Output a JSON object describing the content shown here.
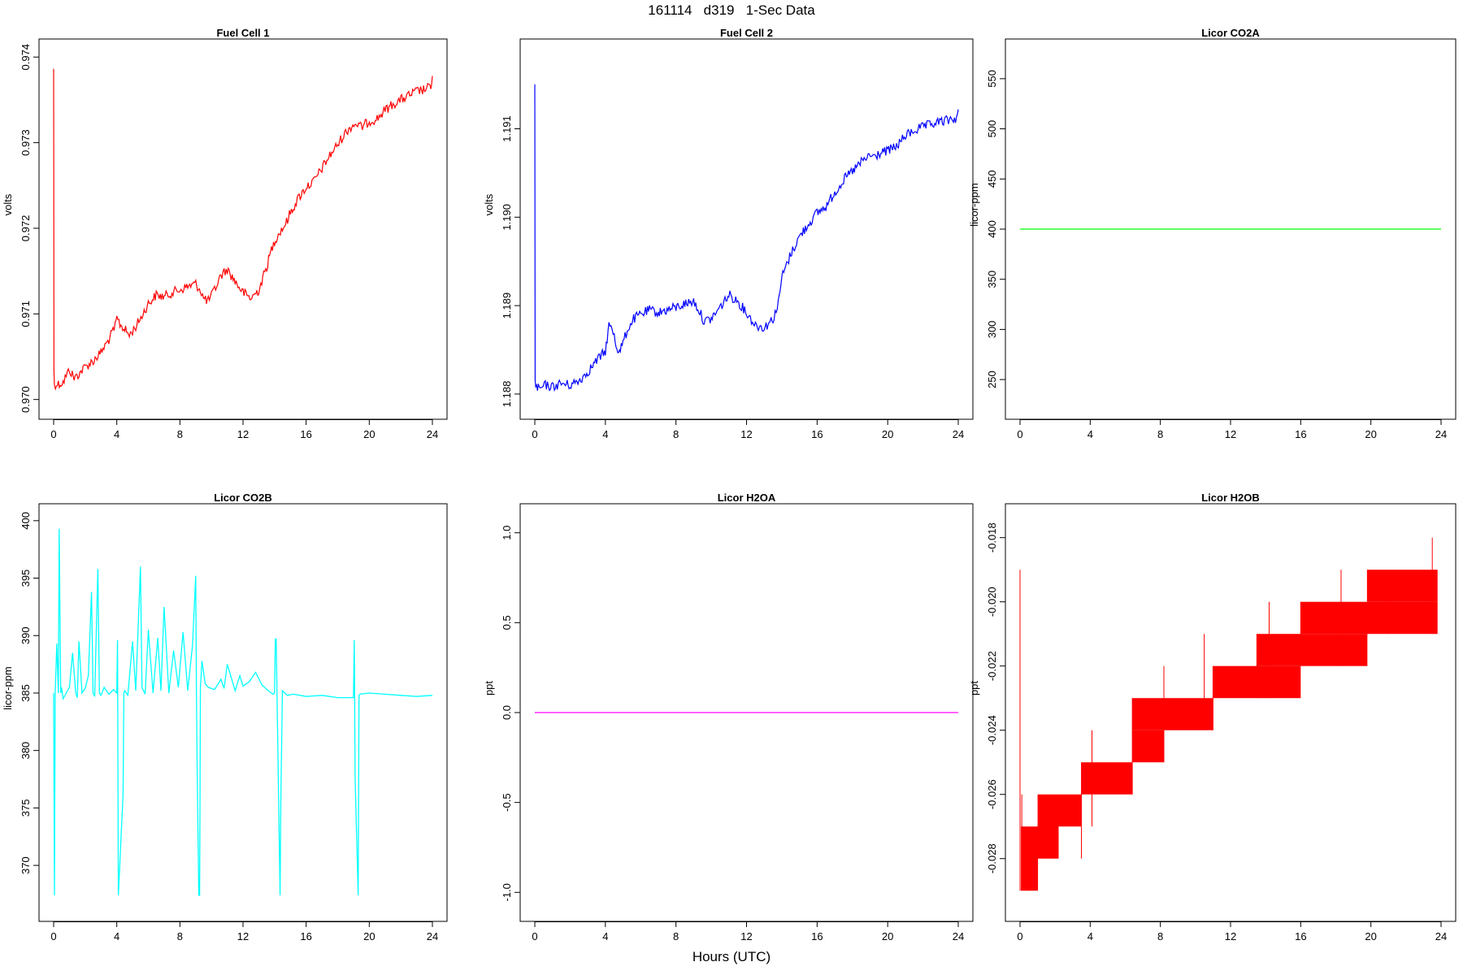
{
  "page": {
    "title": "161114   d319   1-Sec Data",
    "xlabel": "Hours (UTC)"
  },
  "chart_data": [
    {
      "type": "line",
      "title": "Fuel Cell 1",
      "xlabel": "",
      "ylabel": "volts",
      "color": "#ff0000",
      "xlim": [
        0,
        24
      ],
      "ylim": [
        0.96994,
        0.97404
      ],
      "x_ticks": [
        "0",
        "4",
        "8",
        "12",
        "16",
        "20",
        "24"
      ],
      "y_ticks": [
        "0.970",
        "0.971",
        "0.972",
        "0.973",
        "0.974"
      ],
      "series": [
        {
          "x": [
            0,
            0.02,
            0.05,
            0.3,
            0.6,
            1.0,
            1.3,
            1.6,
            2.0,
            2.5,
            3.0,
            3.5,
            3.9,
            4.0,
            4.2,
            4.5,
            4.8,
            5.2,
            5.6,
            6.0,
            6.5,
            7.0,
            7.5,
            8.0,
            8.5,
            9.0,
            9.3,
            9.5,
            9.8,
            10.2,
            10.6,
            11.0,
            11.5,
            12.0,
            12.5,
            13.0,
            13.5,
            13.8,
            14.0,
            14.3,
            14.7,
            15.0,
            15.5,
            16.0,
            16.5,
            17.0,
            17.5,
            18.0,
            18.5,
            18.9,
            19.2,
            19.5,
            20.0,
            20.5,
            21.0,
            21.5,
            22.0,
            22.5,
            23.0,
            23.5,
            23.9,
            24.0
          ],
          "y": [
            0.97388,
            0.9703,
            0.97018,
            0.97018,
            0.9702,
            0.97035,
            0.97025,
            0.9703,
            0.97038,
            0.97045,
            0.97055,
            0.9707,
            0.97085,
            0.97095,
            0.97088,
            0.97082,
            0.97075,
            0.97085,
            0.97098,
            0.97112,
            0.97122,
            0.9712,
            0.97125,
            0.97128,
            0.97132,
            0.97135,
            0.97128,
            0.97118,
            0.97115,
            0.97128,
            0.97145,
            0.97152,
            0.97138,
            0.97125,
            0.97118,
            0.97128,
            0.97155,
            0.97175,
            0.97185,
            0.97195,
            0.97205,
            0.97218,
            0.97235,
            0.97248,
            0.97255,
            0.9727,
            0.97285,
            0.97298,
            0.97312,
            0.9732,
            0.97322,
            0.97318,
            0.97325,
            0.97328,
            0.97338,
            0.97345,
            0.9735,
            0.97355,
            0.9736,
            0.97362,
            0.97365,
            0.97378
          ]
        }
      ]
    },
    {
      "type": "line",
      "title": "Fuel Cell 2",
      "xlabel": "",
      "ylabel": "volts",
      "color": "#0000ff",
      "xlim": [
        0,
        24
      ],
      "ylim": [
        1.18788,
        1.19185
      ],
      "x_ticks": [
        "0",
        "4",
        "8",
        "12",
        "16",
        "20",
        "24"
      ],
      "y_ticks": [
        "1.188",
        "1.189",
        "1.190",
        "1.191"
      ],
      "series": [
        {
          "x": [
            0,
            0.02,
            0.05,
            0.3,
            0.6,
            1.0,
            1.5,
            2.0,
            2.5,
            3.0,
            3.5,
            4.0,
            4.2,
            4.5,
            4.6,
            4.8,
            5.0,
            5.3,
            5.6,
            6.0,
            6.5,
            7.0,
            7.5,
            8.0,
            8.5,
            9.0,
            9.3,
            9.6,
            10.0,
            10.5,
            11.0,
            11.5,
            12.0,
            12.5,
            13.0,
            13.5,
            13.8,
            14.0,
            14.5,
            15.0,
            15.5,
            16.0,
            16.5,
            17.0,
            17.5,
            18.0,
            18.5,
            19.0,
            19.3,
            19.5,
            20.0,
            20.5,
            21.0,
            21.5,
            22.0,
            22.5,
            23.0,
            23.5,
            23.9,
            24.0
          ],
          "y": [
            1.19152,
            1.18812,
            1.18808,
            1.18805,
            1.1881,
            1.18808,
            1.18812,
            1.1881,
            1.18815,
            1.18825,
            1.18838,
            1.18848,
            1.18878,
            1.18868,
            1.18855,
            1.18848,
            1.18858,
            1.18875,
            1.18885,
            1.1889,
            1.18895,
            1.18892,
            1.18895,
            1.18898,
            1.18902,
            1.18905,
            1.18895,
            1.18882,
            1.18885,
            1.18898,
            1.18912,
            1.18905,
            1.18892,
            1.18878,
            1.18875,
            1.18885,
            1.18902,
            1.18932,
            1.18958,
            1.18978,
            1.18992,
            1.19005,
            1.19012,
            1.19028,
            1.19042,
            1.19052,
            1.19062,
            1.1907,
            1.19068,
            1.19072,
            1.19075,
            1.1908,
            1.19092,
            1.19098,
            1.19102,
            1.19105,
            1.19108,
            1.1911,
            1.19112,
            1.19122
          ]
        }
      ]
    },
    {
      "type": "line",
      "title": "Licor CO2A",
      "xlabel": "",
      "ylabel": "licor-ppm",
      "color": "#00ff00",
      "xlim": [
        0,
        24
      ],
      "ylim": [
        225,
        575
      ],
      "x_ticks": [
        "0",
        "4",
        "8",
        "12",
        "16",
        "20",
        "24"
      ],
      "y_ticks": [
        "250",
        "300",
        "350",
        "400",
        "450",
        "500",
        "550"
      ],
      "series": [
        {
          "x": [
            0,
            24
          ],
          "y": [
            400,
            400
          ]
        }
      ]
    },
    {
      "type": "line",
      "title": "Licor CO2B",
      "xlabel": "",
      "ylabel": "licor-ppm",
      "color": "#00ffff",
      "xlim": [
        0,
        24
      ],
      "ylim": [
        366.4,
        400.2
      ],
      "x_ticks": [
        "0",
        "4",
        "8",
        "12",
        "16",
        "20",
        "24"
      ],
      "y_ticks": [
        "370",
        "375",
        "380",
        "385",
        "390",
        "395",
        "400"
      ],
      "series": [
        {
          "x": [
            0,
            0.05,
            0.1,
            0.2,
            0.3,
            0.35,
            0.45,
            0.5,
            0.6,
            0.8,
            1.0,
            1.2,
            1.4,
            1.5,
            1.6,
            1.8,
            2.0,
            2.2,
            2.4,
            2.5,
            2.6,
            2.8,
            2.9,
            3.0,
            3.2,
            3.5,
            3.8,
            4.0,
            4.05,
            4.1,
            4.4,
            4.45,
            4.5,
            4.7,
            5.0,
            5.2,
            5.5,
            5.6,
            5.8,
            6.0,
            6.3,
            6.6,
            6.8,
            7.0,
            7.3,
            7.6,
            7.9,
            8.2,
            8.5,
            8.8,
            9.0,
            9.05,
            9.1,
            9.2,
            9.25,
            9.3,
            9.4,
            9.6,
            9.8,
            10.2,
            10.6,
            10.8,
            11.0,
            11.5,
            11.8,
            12.0,
            12.4,
            12.8,
            13.2,
            13.6,
            13.9,
            14.0,
            14.05,
            14.1,
            14.35,
            14.4,
            14.5,
            14.8,
            15.2,
            16.0,
            17.0,
            18.0,
            19.0,
            19.05,
            19.1,
            19.3,
            19.35,
            19.4,
            20.0,
            21.0,
            22.0,
            23.0,
            24.0
          ],
          "y": [
            385,
            367.4,
            385,
            389.3,
            385,
            399.3,
            385,
            385.5,
            384.5,
            385,
            385.5,
            388.5,
            385,
            384.6,
            389.5,
            385,
            385.4,
            386.5,
            393.8,
            385,
            384.7,
            395.8,
            385,
            384.8,
            385.5,
            384.9,
            385.3,
            385,
            389.6,
            367.4,
            376.1,
            385,
            385.2,
            384.8,
            389.5,
            385.2,
            396,
            385.5,
            384.9,
            390.5,
            385,
            389.8,
            385.2,
            392.5,
            385,
            388.7,
            385.5,
            390.3,
            385.2,
            389.2,
            395.2,
            385,
            377.6,
            367.4,
            367.4,
            385.5,
            387.8,
            385.8,
            385.5,
            385.3,
            386.2,
            385.4,
            387.5,
            385.2,
            386.5,
            385.6,
            386,
            386.8,
            385.7,
            385.2,
            384.9,
            385,
            389.7,
            389.7,
            367.4,
            376.1,
            385.2,
            384.8,
            384.9,
            384.7,
            384.8,
            384.6,
            384.6,
            389.6,
            377.6,
            367.4,
            384.8,
            384.9,
            385,
            384.9,
            384.8,
            384.7,
            384.8
          ]
        }
      ]
    },
    {
      "type": "line",
      "title": "Licor H2OA",
      "xlabel": "",
      "ylabel": "ppt",
      "color": "#ff00ff",
      "xlim": [
        0,
        24
      ],
      "ylim": [
        -1.08,
        1.08
      ],
      "x_ticks": [
        "0",
        "4",
        "8",
        "12",
        "16",
        "20",
        "24"
      ],
      "y_ticks": [
        "-1.0",
        "-0.5",
        "0.0",
        "0.5",
        "1.0"
      ],
      "series": [
        {
          "x": [
            0,
            24
          ],
          "y": [
            0,
            0
          ]
        }
      ]
    },
    {
      "type": "line",
      "title": "Licor H2OB",
      "xlabel": "",
      "ylabel": "ppt",
      "color": "#ff0000",
      "xlim": [
        0,
        24
      ],
      "ylim": [
        -0.0295,
        -0.0174
      ],
      "x_ticks": [
        "0",
        "4",
        "8",
        "12",
        "16",
        "20",
        "24"
      ],
      "y_ticks": [
        "-0.028",
        "-0.026",
        "-0.024",
        "-0.022",
        "-0.020",
        "-0.018"
      ],
      "bands": [
        {
          "x0": 0.05,
          "x1": 1.0,
          "lo": -0.029,
          "hi": -0.027
        },
        {
          "x0": 1.0,
          "x1": 2.2,
          "lo": -0.028,
          "hi": -0.026
        },
        {
          "x0": 2.2,
          "x1": 3.5,
          "lo": -0.027,
          "hi": -0.026
        },
        {
          "x0": 3.5,
          "x1": 6.4,
          "lo": -0.026,
          "hi": -0.025
        },
        {
          "x0": 6.4,
          "x1": 8.2,
          "lo": -0.025,
          "hi": -0.024
        },
        {
          "x0": 6.4,
          "x1": 11.0,
          "lo": -0.024,
          "hi": -0.023
        },
        {
          "x0": 11.0,
          "x1": 16.0,
          "lo": -0.023,
          "hi": -0.022
        },
        {
          "x0": 13.5,
          "x1": 19.8,
          "lo": -0.022,
          "hi": -0.021
        },
        {
          "x0": 16.0,
          "x1": 23.8,
          "lo": -0.021,
          "hi": -0.02
        },
        {
          "x0": 19.8,
          "x1": 23.8,
          "lo": -0.02,
          "hi": -0.019
        }
      ],
      "spikes": [
        {
          "x": 0.0,
          "lo": -0.029,
          "hi": -0.019
        },
        {
          "x": 0.1,
          "lo": -0.029,
          "hi": -0.026
        },
        {
          "x": 0.5,
          "lo": -0.029,
          "hi": -0.027
        },
        {
          "x": 1.0,
          "lo": -0.029,
          "hi": -0.027
        },
        {
          "x": 3.5,
          "lo": -0.028,
          "hi": -0.025
        },
        {
          "x": 4.1,
          "lo": -0.027,
          "hi": -0.024
        },
        {
          "x": 6.4,
          "lo": -0.026,
          "hi": -0.023
        },
        {
          "x": 8.2,
          "lo": -0.025,
          "hi": -0.022
        },
        {
          "x": 10.5,
          "lo": -0.024,
          "hi": -0.021
        },
        {
          "x": 11.0,
          "lo": -0.024,
          "hi": -0.022
        },
        {
          "x": 13.5,
          "lo": -0.023,
          "hi": -0.021
        },
        {
          "x": 14.2,
          "lo": -0.023,
          "hi": -0.02
        },
        {
          "x": 16.0,
          "lo": -0.022,
          "hi": -0.02
        },
        {
          "x": 18.3,
          "lo": -0.022,
          "hi": -0.019
        },
        {
          "x": 19.8,
          "lo": -0.021,
          "hi": -0.019
        },
        {
          "x": 21.0,
          "lo": -0.021,
          "hi": -0.019
        },
        {
          "x": 23.5,
          "lo": -0.021,
          "hi": -0.018
        }
      ]
    }
  ]
}
